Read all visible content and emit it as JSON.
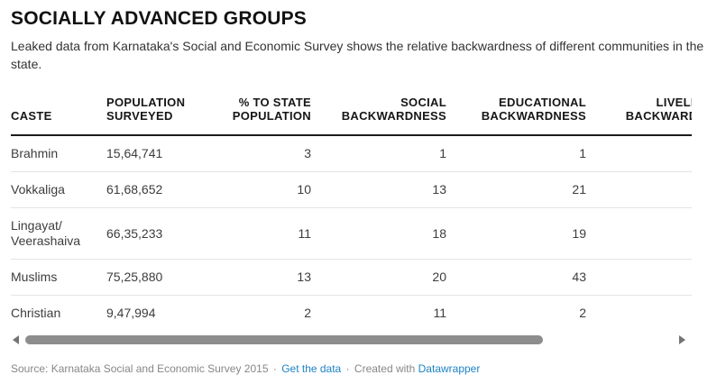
{
  "header": {
    "title": "SOCIALLY ADVANCED GROUPS",
    "description": "Leaked data from Karnataka's Social and Economic Survey shows the relative backwardness of different communities in the state."
  },
  "table": {
    "headers": {
      "caste": "CASTE",
      "population": "POPULATION\nSURVEYED",
      "pct_state": "% TO STATE\nPOPULATION",
      "social": "SOCIAL\nBACKWARDNESS",
      "educational": "EDUCATIONAL\nBACKWARDNESS",
      "livelihood": "LIVELIHOOD\nBACKWARDNESS"
    },
    "rows": [
      {
        "caste": "Brahmin",
        "population": "15,64,741",
        "pct_state": "3",
        "social": "1",
        "educational": "1",
        "livelihood": ""
      },
      {
        "caste": "Vokkaliga",
        "population": "61,68,652",
        "pct_state": "10",
        "social": "13",
        "educational": "21",
        "livelihood": ""
      },
      {
        "caste": "Lingayat/\nVeerashaiva",
        "population": "66,35,233",
        "pct_state": "11",
        "social": "18",
        "educational": "19",
        "livelihood": ""
      },
      {
        "caste": "Muslims",
        "population": "75,25,880",
        "pct_state": "13",
        "social": "20",
        "educational": "43",
        "livelihood": ""
      },
      {
        "caste": "Christian",
        "population": "9,47,994",
        "pct_state": "2",
        "social": "11",
        "educational": "2",
        "livelihood": ""
      }
    ]
  },
  "chart_data": {
    "type": "table",
    "title": "SOCIALLY ADVANCED GROUPS",
    "subtitle": "Leaked data from Karnataka's Social and Economic Survey shows the relative backwardness of different communities in the state.",
    "columns": [
      "CASTE",
      "POPULATION SURVEYED",
      "% TO STATE POPULATION",
      "SOCIAL BACKWARDNESS",
      "EDUCATIONAL BACKWARDNESS",
      "LIVELIHOOD BACKWARDNESS"
    ],
    "rows": [
      [
        "Brahmin",
        "15,64,741",
        3,
        1,
        1,
        null
      ],
      [
        "Vokkaliga",
        "61,68,652",
        10,
        13,
        21,
        null
      ],
      [
        "Lingayat/ Veerashaiva",
        "66,35,233",
        11,
        18,
        19,
        null
      ],
      [
        "Muslims",
        "75,25,880",
        13,
        20,
        43,
        null
      ],
      [
        "Christian",
        "9,47,994",
        2,
        11,
        2,
        null
      ]
    ],
    "layout_hints": "Last column horizontally clipped by scroll viewport; its values are off-screen. Numeric columns right-aligned."
  },
  "scrollbar": {
    "thumb_position": "left",
    "visible_fraction": "0.8"
  },
  "footer": {
    "source_text": "Source: Karnataka Social and Economic Survey 2015",
    "separator": "·",
    "get_data_link": "Get the data",
    "created_with_text": "Created with",
    "datawrapper_link": "Datawrapper"
  },
  "colors": {
    "link_blue": "#1e83c5",
    "header_rule": "#1c1c1c",
    "row_rule": "#e4e4e4",
    "scrollbar_thumb": "#8d8d8d",
    "body_text": "#3d3d3d",
    "muted_text": "#878787"
  }
}
